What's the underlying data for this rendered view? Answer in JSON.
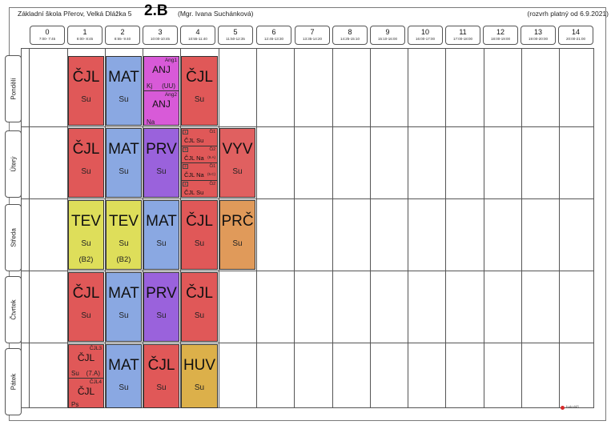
{
  "header": {
    "school": "Základní škola Přerov, Velká Dlážka 5",
    "class_name": "2.B",
    "teacher": "(Mgr. Ivana Suchánková)",
    "valid_from": "(rozvrh platný od 6.9.2021)"
  },
  "periods": [
    {
      "num": "0",
      "time": "7:00- 7:45"
    },
    {
      "num": "1",
      "time": "8:00- 8:45"
    },
    {
      "num": "2",
      "time": "8:55- 9:40"
    },
    {
      "num": "3",
      "time": "10:00-10:45"
    },
    {
      "num": "4",
      "time": "10:55-11:40"
    },
    {
      "num": "5",
      "time": "11:50-12:35"
    },
    {
      "num": "6",
      "time": "12:45-13:30"
    },
    {
      "num": "7",
      "time": "13:35-14:20"
    },
    {
      "num": "8",
      "time": "14:25-15:10"
    },
    {
      "num": "9",
      "time": "15:10-16:00"
    },
    {
      "num": "10",
      "time": "16:00-17:00"
    },
    {
      "num": "11",
      "time": "17:00-18:00"
    },
    {
      "num": "12",
      "time": "18:00-19:00"
    },
    {
      "num": "13",
      "time": "19:00-20:00"
    },
    {
      "num": "14",
      "time": "20:00-21:00"
    }
  ],
  "days": [
    "Pondělí",
    "Úterý",
    "Středa",
    "Čtvrtek",
    "Pátek"
  ],
  "colors": {
    "CJL": "#e05858",
    "MAT": "#8aa8e2",
    "ANJ": "#d85ad8",
    "PRV": "#9a62dc",
    "VYV": "#e06060",
    "TEV": "#dede5a",
    "PRC": "#e09a5a",
    "HUV": "#dcb04a"
  },
  "mon": {
    "p1": {
      "subj": "ČJL",
      "tch": "Su"
    },
    "p2": {
      "subj": "MAT",
      "tch": "Su"
    },
    "p3a": {
      "grp": "Ang1",
      "subj": "ANJ",
      "tch": "Kj",
      "room": "(UU)"
    },
    "p3b": {
      "grp": "Ang2",
      "subj": "ANJ",
      "tch": "Na"
    },
    "p4": {
      "subj": "ČJL",
      "tch": "Su"
    }
  },
  "tue": {
    "p1": {
      "subj": "ČJL",
      "tch": "Su"
    },
    "p2": {
      "subj": "MAT",
      "tch": "Su"
    },
    "p3": {
      "subj": "PRV",
      "tch": "Su"
    },
    "p4": [
      {
        "mark": "1",
        "grp": "Či1",
        "text": "ČJL Su",
        "room": ""
      },
      {
        "mark": "3",
        "grp": "Či2",
        "text": "ČJL Na",
        "room": "(9.A)"
      },
      {
        "mark": "2",
        "grp": "Či1",
        "text": "ČJL Na",
        "room": "(5.C)"
      },
      {
        "mark": "4",
        "grp": "Či2",
        "text": "ČJL Su",
        "room": ""
      }
    ],
    "p5": {
      "subj": "VYV",
      "tch": "Su"
    }
  },
  "wed": {
    "p1": {
      "subj": "TEV",
      "tch": "Su",
      "room": "(B2)"
    },
    "p2": {
      "subj": "TEV",
      "tch": "Su",
      "room": "(B2)"
    },
    "p3": {
      "subj": "MAT",
      "tch": "Su"
    },
    "p4": {
      "subj": "ČJL",
      "tch": "Su"
    },
    "p5": {
      "subj": "PRČ",
      "tch": "Su"
    }
  },
  "thu": {
    "p1": {
      "subj": "ČJL",
      "tch": "Su"
    },
    "p2": {
      "subj": "MAT",
      "tch": "Su"
    },
    "p3": {
      "subj": "PRV",
      "tch": "Su"
    },
    "p4": {
      "subj": "ČJL",
      "tch": "Su"
    }
  },
  "fri": {
    "p1a": {
      "grp": "ČJL3",
      "subj": "ČJL",
      "tch": "Su",
      "room": "(7.A)"
    },
    "p1b": {
      "grp": "ČJL4",
      "subj": "ČJL",
      "tch": "Ps"
    },
    "p2": {
      "subj": "MAT",
      "tch": "Su"
    },
    "p3": {
      "subj": "ČJL",
      "tch": "Su"
    },
    "p4": {
      "subj": "HUV",
      "tch": "Su"
    }
  },
  "logo_text": "bakaláři"
}
